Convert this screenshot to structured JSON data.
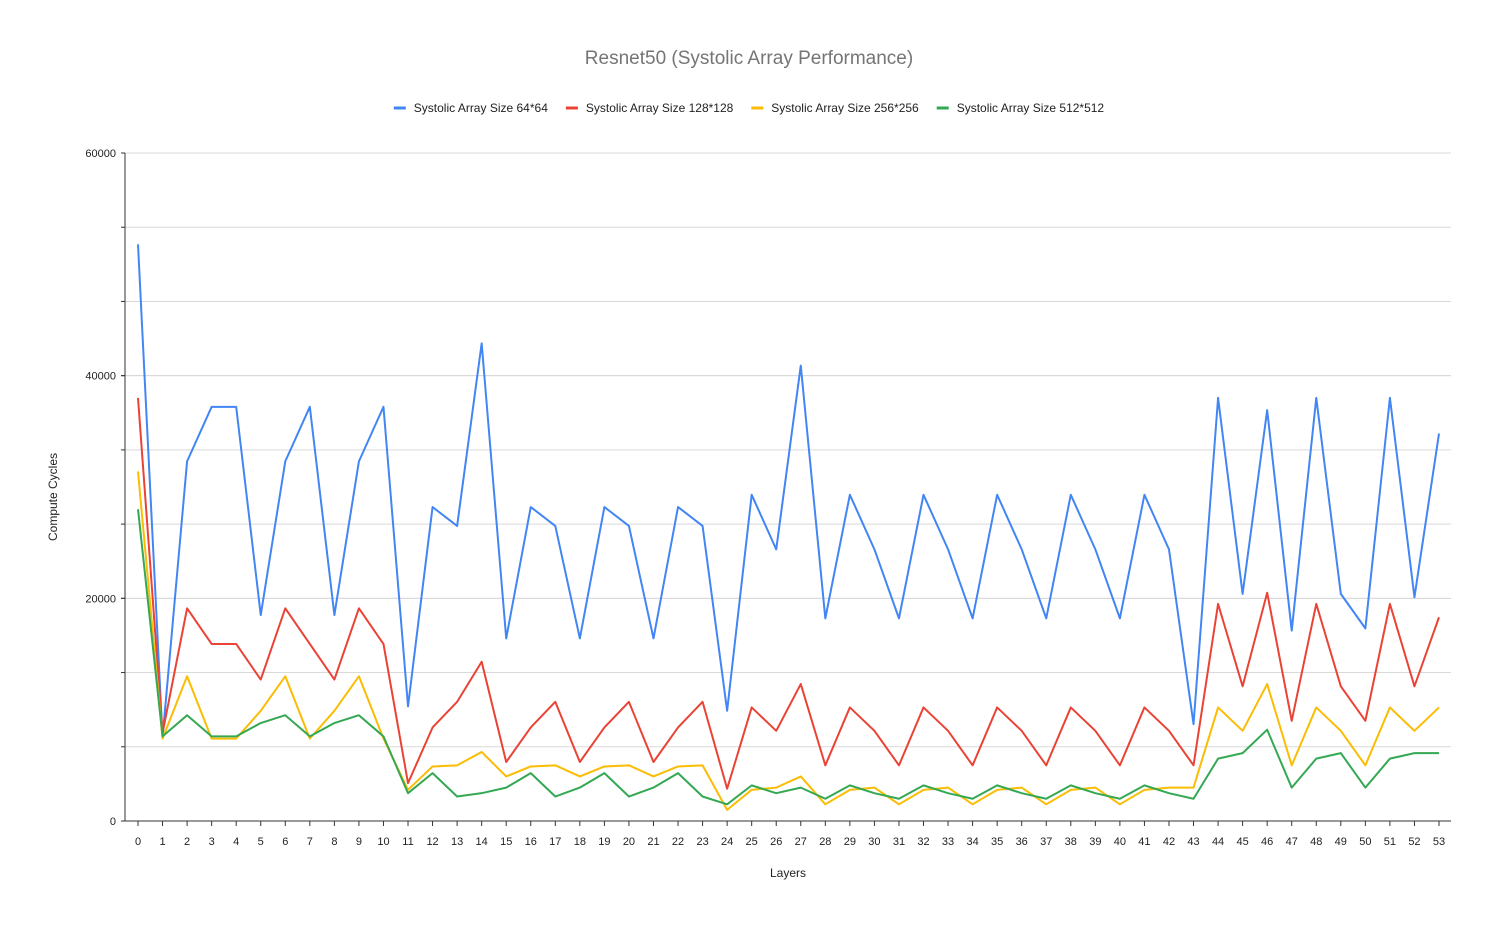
{
  "chart_data": {
    "type": "line",
    "title": "Resnet50 (Systolic Array Performance)",
    "xlabel": "Layers",
    "ylabel": "Compute Cycles",
    "ylim": [
      0,
      60000
    ],
    "yticks": [
      0,
      20000,
      40000,
      60000
    ],
    "grid": true,
    "legend_position": "top",
    "x": [
      0,
      1,
      2,
      3,
      4,
      5,
      6,
      7,
      8,
      9,
      10,
      11,
      12,
      13,
      14,
      15,
      16,
      17,
      18,
      19,
      20,
      21,
      22,
      23,
      24,
      25,
      26,
      27,
      28,
      29,
      30,
      31,
      32,
      33,
      34,
      35,
      36,
      37,
      38,
      39,
      40,
      41,
      42,
      43,
      44,
      45,
      46,
      47,
      48,
      49,
      50,
      51,
      52,
      53
    ],
    "series": [
      {
        "name": "Systolic Array Size 64*64",
        "color": "#4285f4",
        "values": [
          51800,
          7500,
          32300,
          37200,
          37200,
          18500,
          32300,
          37200,
          18500,
          32300,
          37200,
          10300,
          28200,
          26500,
          42900,
          16400,
          28200,
          26500,
          16400,
          28200,
          26500,
          16400,
          28200,
          26500,
          9900,
          29300,
          24400,
          40900,
          18200,
          29300,
          24400,
          18200,
          29300,
          24400,
          18200,
          29300,
          24400,
          18200,
          29300,
          24400,
          18200,
          29300,
          24400,
          8700,
          38000,
          20400,
          36900,
          17100,
          38000,
          20400,
          17300,
          38000,
          20100,
          34800
        ]
      },
      {
        "name": "Systolic Array Size 128*128",
        "color": "#ea4335",
        "values": [
          38000,
          7900,
          19100,
          15900,
          15900,
          12700,
          19100,
          15900,
          12700,
          19100,
          15900,
          3400,
          8400,
          10700,
          14300,
          5300,
          8400,
          10700,
          5300,
          8400,
          10700,
          5300,
          8400,
          10700,
          2900,
          10200,
          8100,
          12300,
          5000,
          10200,
          8100,
          5000,
          10200,
          8100,
          5000,
          10200,
          8100,
          5000,
          10200,
          8100,
          5000,
          10200,
          8100,
          5000,
          19500,
          12100,
          20500,
          9000,
          19500,
          12100,
          9000,
          19500,
          12100,
          18300
        ]
      },
      {
        "name": "Systolic Array Size 256*256",
        "color": "#fbbc04",
        "values": [
          31400,
          7400,
          13000,
          7400,
          7400,
          9900,
          13000,
          7400,
          9900,
          13000,
          7400,
          2800,
          4900,
          5000,
          6200,
          4000,
          4900,
          5000,
          4000,
          4900,
          5000,
          4000,
          4900,
          5000,
          1000,
          2800,
          3000,
          4000,
          1500,
          2800,
          3000,
          1500,
          2800,
          3000,
          1500,
          2800,
          3000,
          1500,
          2800,
          3000,
          1500,
          2800,
          3000,
          3000,
          10200,
          8100,
          12300,
          5000,
          10200,
          8100,
          5000,
          10200,
          8100,
          10200
        ]
      },
      {
        "name": "Systolic Array Size 512*512",
        "color": "#34a853",
        "values": [
          28000,
          7600,
          9500,
          7600,
          7600,
          8800,
          9500,
          7600,
          8800,
          9500,
          7600,
          2500,
          4300,
          2200,
          2500,
          3000,
          4300,
          2200,
          3000,
          4300,
          2200,
          3000,
          4300,
          2200,
          1500,
          3200,
          2500,
          3000,
          2000,
          3200,
          2500,
          2000,
          3200,
          2500,
          2000,
          3200,
          2500,
          2000,
          3200,
          2500,
          2000,
          3200,
          2500,
          2000,
          5600,
          6100,
          8200,
          3000,
          5600,
          6100,
          3000,
          5600,
          6100,
          6100
        ]
      }
    ]
  }
}
